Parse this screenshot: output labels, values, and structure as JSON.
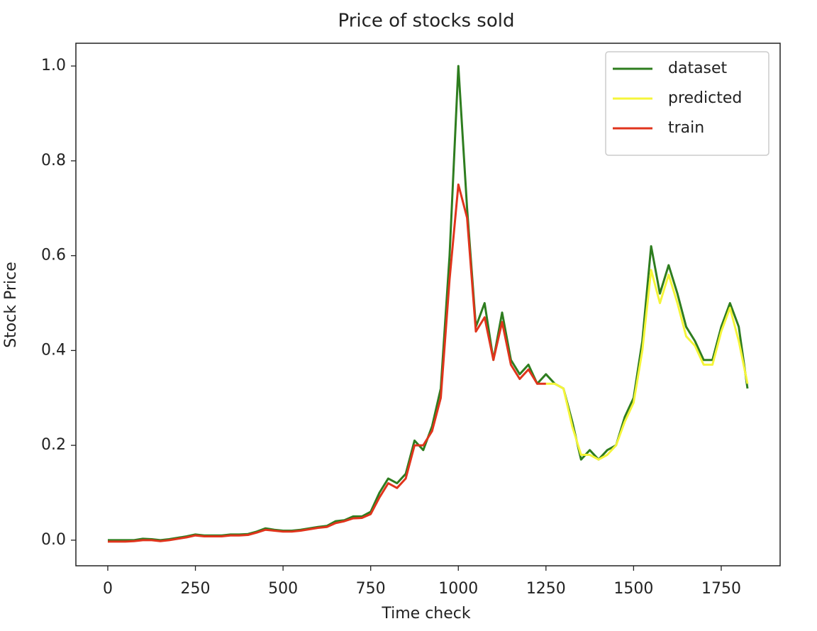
{
  "chart_data": {
    "type": "line",
    "title": "Price of stocks sold",
    "x_label": "Time check",
    "y_label": "Stock Price",
    "x": [
      0,
      25,
      50,
      75,
      100,
      125,
      150,
      175,
      200,
      225,
      250,
      275,
      300,
      325,
      350,
      375,
      400,
      425,
      450,
      475,
      500,
      525,
      550,
      575,
      600,
      625,
      650,
      675,
      700,
      725,
      750,
      775,
      800,
      825,
      850,
      875,
      900,
      925,
      950,
      975,
      1000,
      1025,
      1050,
      1075,
      1100,
      1125,
      1150,
      1175,
      1200,
      1225,
      1250,
      1275,
      1300,
      1325,
      1350,
      1375,
      1400,
      1425,
      1450,
      1475,
      1500,
      1525,
      1550,
      1575,
      1600,
      1625,
      1650,
      1675,
      1700,
      1725,
      1750,
      1775,
      1800,
      1825
    ],
    "series": [
      {
        "name": "dataset",
        "color": "#2e7d1f",
        "values": [
          0.0,
          0.0,
          0.0,
          0.0,
          0.003,
          0.002,
          0.0,
          0.002,
          0.005,
          0.008,
          0.012,
          0.01,
          0.01,
          0.01,
          0.012,
          0.012,
          0.013,
          0.018,
          0.025,
          0.022,
          0.02,
          0.02,
          0.022,
          0.025,
          0.028,
          0.03,
          0.04,
          0.042,
          0.05,
          0.05,
          0.06,
          0.1,
          0.13,
          0.12,
          0.14,
          0.21,
          0.19,
          0.24,
          0.32,
          0.6,
          1.0,
          0.7,
          0.45,
          0.5,
          0.38,
          0.48,
          0.38,
          0.35,
          0.37,
          0.33,
          0.35,
          0.33,
          0.32,
          0.25,
          0.17,
          0.19,
          0.17,
          0.19,
          0.2,
          0.26,
          0.3,
          0.42,
          0.62,
          0.52,
          0.58,
          0.52,
          0.45,
          0.42,
          0.38,
          0.38,
          0.45,
          0.5,
          0.45,
          0.32
        ]
      },
      {
        "name": "predicted",
        "color": "#f5f53a",
        "values": [
          null,
          null,
          null,
          null,
          null,
          null,
          null,
          null,
          null,
          null,
          null,
          null,
          null,
          null,
          null,
          null,
          null,
          null,
          null,
          null,
          null,
          null,
          null,
          null,
          null,
          null,
          null,
          null,
          null,
          null,
          null,
          null,
          null,
          null,
          null,
          null,
          null,
          null,
          null,
          null,
          null,
          null,
          null,
          null,
          null,
          null,
          null,
          null,
          null,
          null,
          0.33,
          0.33,
          0.32,
          0.24,
          0.18,
          0.18,
          0.17,
          0.18,
          0.2,
          0.25,
          0.29,
          0.4,
          0.57,
          0.5,
          0.56,
          0.5,
          0.43,
          0.41,
          0.37,
          0.37,
          0.44,
          0.49,
          0.42,
          0.33
        ]
      },
      {
        "name": "train",
        "color": "#e0341c",
        "values": [
          -0.003,
          -0.003,
          -0.003,
          -0.002,
          0.0,
          0.0,
          -0.002,
          0.0,
          0.003,
          0.006,
          0.01,
          0.008,
          0.008,
          0.008,
          0.01,
          0.01,
          0.011,
          0.016,
          0.022,
          0.02,
          0.018,
          0.018,
          0.02,
          0.023,
          0.026,
          0.028,
          0.036,
          0.04,
          0.046,
          0.047,
          0.055,
          0.09,
          0.12,
          0.11,
          0.13,
          0.2,
          0.2,
          0.23,
          0.3,
          0.55,
          0.75,
          0.68,
          0.44,
          0.47,
          0.38,
          0.46,
          0.37,
          0.34,
          0.36,
          0.33,
          0.33,
          null,
          null,
          null,
          null,
          null,
          null,
          null,
          null,
          null,
          null,
          null,
          null,
          null,
          null,
          null,
          null,
          null,
          null,
          null,
          null,
          null,
          null,
          null
        ]
      }
    ],
    "xlim": [
      -91,
      1918
    ],
    "ylim": [
      -0.054,
      1.048
    ],
    "xticks": [
      0,
      250,
      500,
      750,
      1000,
      1250,
      1500,
      1750
    ],
    "yticks": [
      {
        "value": 0,
        "label": "0.0"
      },
      0.2,
      0.4,
      0.6,
      0.8,
      {
        "value": 1,
        "label": "1.0"
      }
    ],
    "legend": "upper right"
  }
}
